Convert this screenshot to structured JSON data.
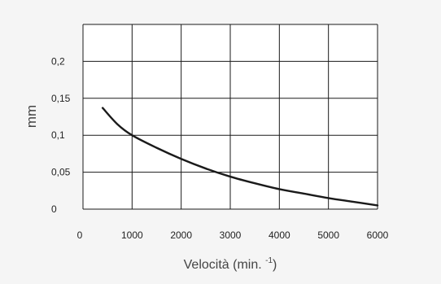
{
  "chart_data": {
    "type": "line",
    "xlabel": "Velocità (min. ",
    "xlabel_sup": "-1",
    "xlabel_close": ")",
    "ylabel": "mm",
    "xlim": [
      0,
      6000
    ],
    "ylim": [
      0,
      0.25
    ],
    "x_ticks": [
      0,
      1000,
      2000,
      3000,
      4000,
      5000,
      6000
    ],
    "x_tick_labels": [
      "0",
      "1000",
      "2000",
      "3000",
      "4000",
      "5000",
      "6000"
    ],
    "y_tick_labels": [
      "0",
      "0,05",
      "0,1",
      "0,15",
      "0,2"
    ],
    "y_ticks": [
      0,
      0.05,
      0.1,
      0.15,
      0.2
    ],
    "grid": true,
    "series": [
      {
        "x": [
          400,
          700,
          1000,
          1500,
          2000,
          2500,
          3000,
          3500,
          4000,
          4500,
          5000,
          5500,
          6000
        ],
        "values": [
          0.137,
          0.115,
          0.1,
          0.083,
          0.068,
          0.055,
          0.044,
          0.035,
          0.027,
          0.021,
          0.015,
          0.01,
          0.005
        ]
      }
    ],
    "colors": {
      "line": "#1a1a1a",
      "grid": "#1a1a1a",
      "background": "#f5f5f5",
      "plot_background": "#ffffff"
    }
  }
}
